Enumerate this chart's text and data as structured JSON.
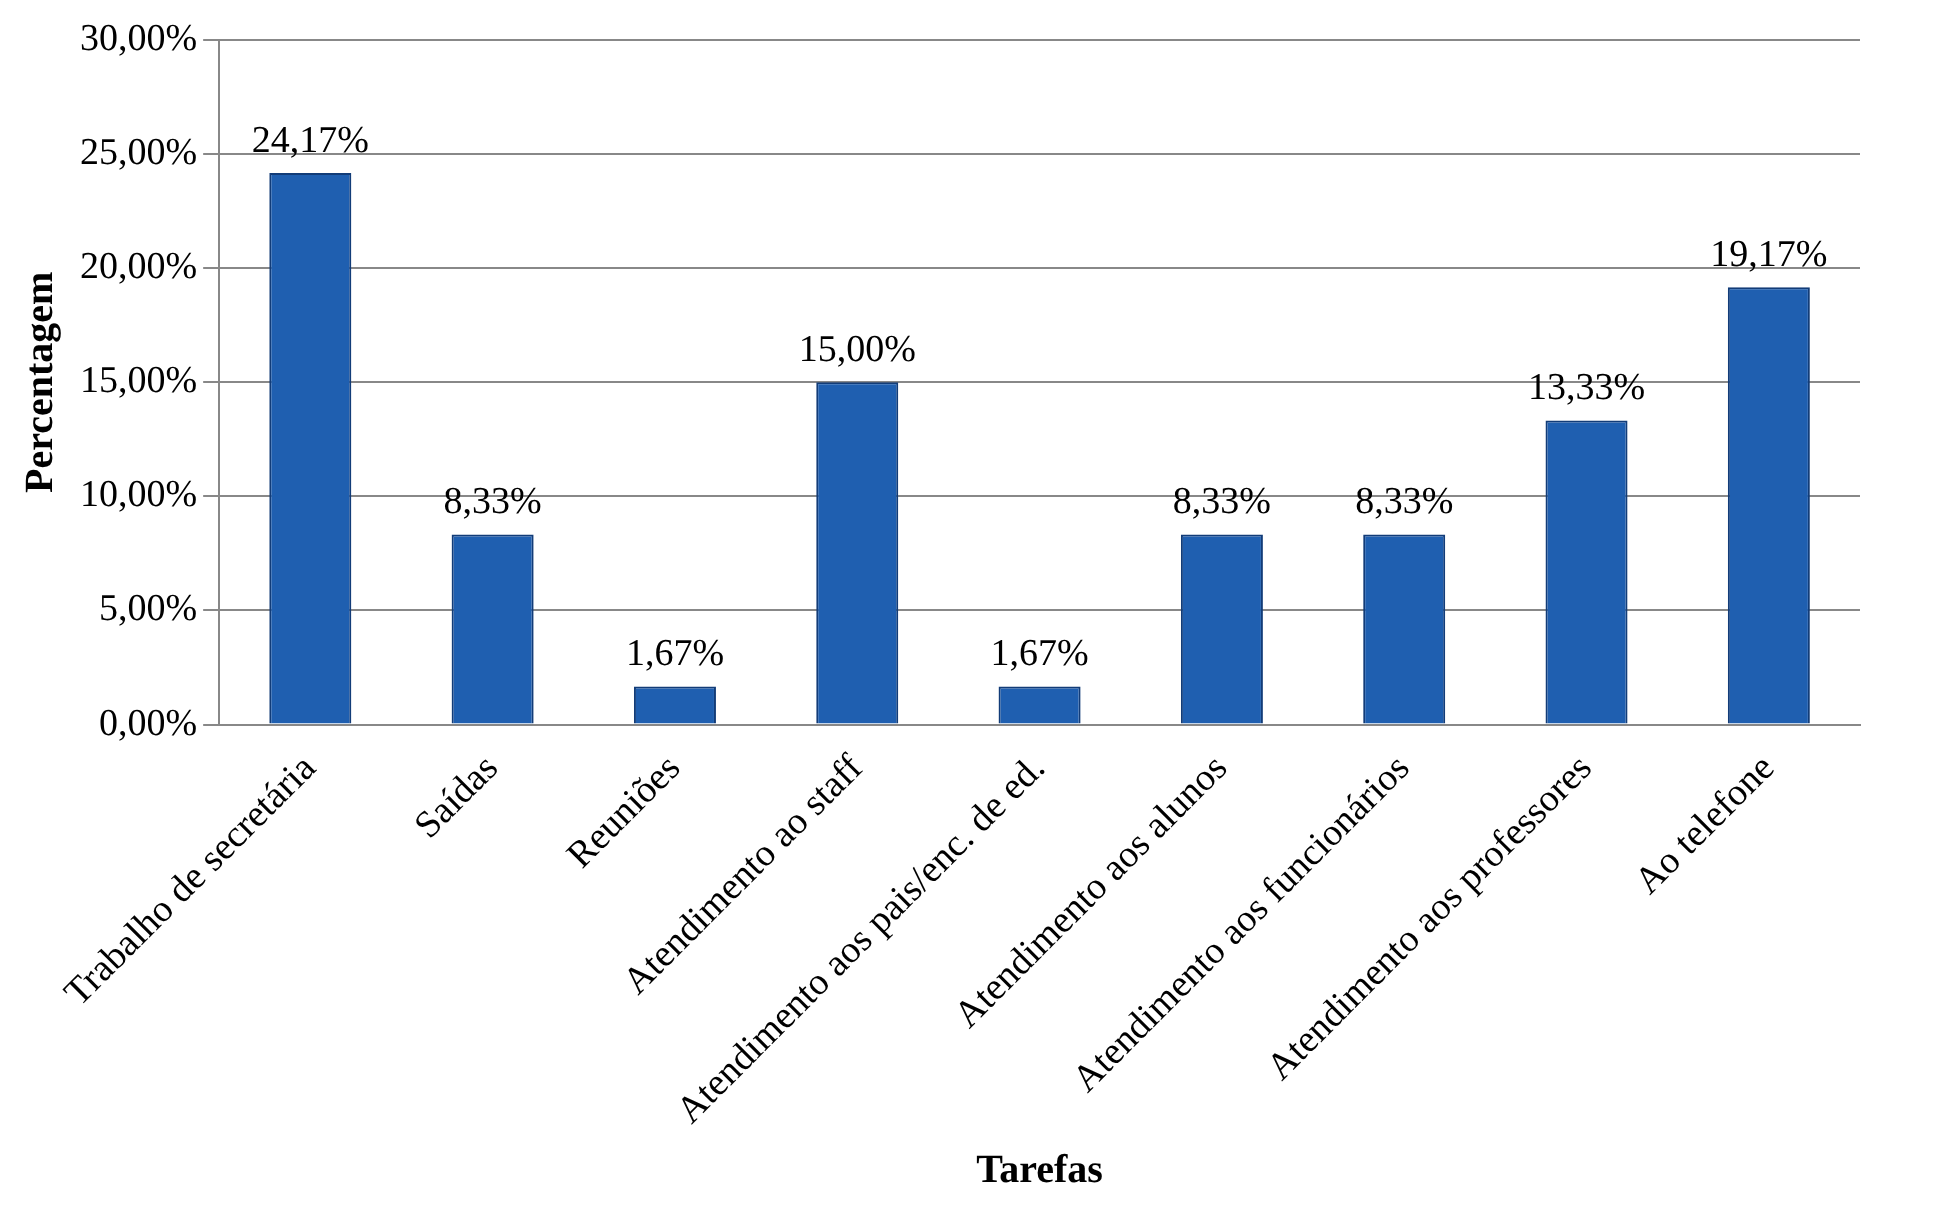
{
  "chart_data": {
    "type": "bar",
    "xlabel": "Tarefas",
    "ylabel": "Percentagem",
    "categories": [
      "Trabalho de secretária",
      "Saídas",
      "Reuniões",
      "Atendimento ao staff",
      "Atendimento aos pais/enc. de ed.",
      "Atendimento aos alunos",
      "Atendimento aos funcionários",
      "Atendimento aos professores",
      "Ao telefone"
    ],
    "values": [
      24.17,
      8.33,
      1.67,
      15.0,
      1.67,
      8.33,
      8.33,
      13.33,
      19.17
    ],
    "value_labels": [
      "24,17%",
      "8,33%",
      "1,67%",
      "15,00%",
      "1,67%",
      "8,33%",
      "8,33%",
      "13,33%",
      "19,17%"
    ],
    "color": "#1f5fb0",
    "ylim": [
      0,
      30
    ],
    "yticks": [
      {
        "value": 0,
        "label": "0,00%"
      },
      {
        "value": 5,
        "label": "5,00%"
      },
      {
        "value": 10,
        "label": "10,00%"
      },
      {
        "value": 15,
        "label": "15,00%"
      },
      {
        "value": 20,
        "label": "20,00%"
      },
      {
        "value": 25,
        "label": "25,00%"
      },
      {
        "value": 30,
        "label": "30,00%"
      }
    ],
    "grid": "y",
    "legend": false
  }
}
